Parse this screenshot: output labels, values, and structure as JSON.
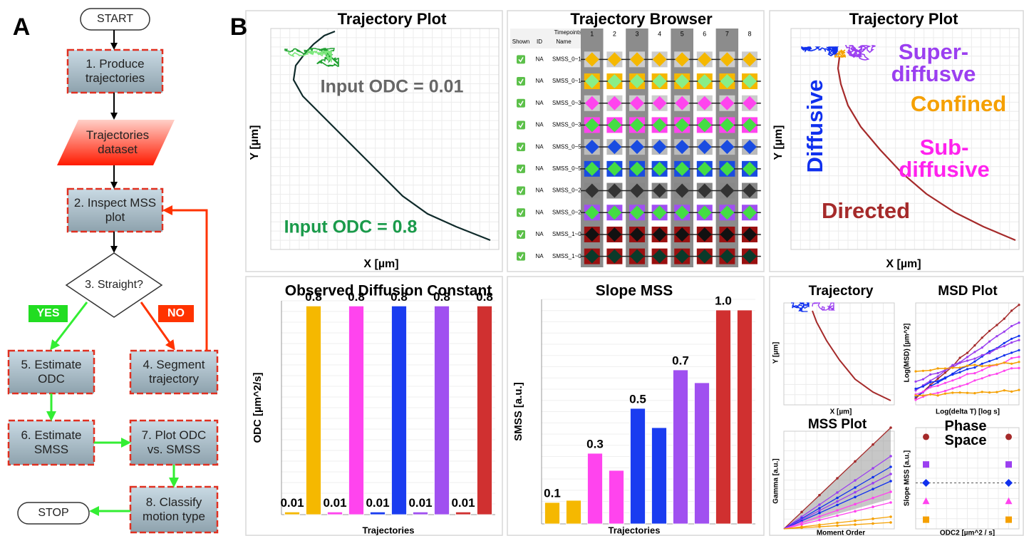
{
  "panel_labels": [
    "A",
    "B"
  ],
  "flowchart": {
    "nodes": [
      {
        "label": "START"
      },
      {
        "label": "1. Produce trajectories"
      },
      {
        "label": "Trajectories dataset"
      },
      {
        "label": "2. Inspect MSS plot"
      },
      {
        "label": "3. Straight?"
      },
      {
        "label": "4. Segment trajectory"
      },
      {
        "label": "5. Estimate ODC"
      },
      {
        "label": "6. Estimate SMSS"
      },
      {
        "label": "7. Plot ODC vs. SMSS"
      },
      {
        "label": "8. Classify motion type"
      },
      {
        "label": "STOP"
      }
    ],
    "edge_labels": [
      "YES",
      "NO"
    ]
  },
  "trajectory_plot_input": {
    "title": "Trajectory Plot",
    "annotations": [
      {
        "text": "Input ODC = 0.01",
        "color": "#666666"
      },
      {
        "text": "Input ODC = 0.8",
        "color": "#1a9a4a"
      }
    ],
    "x_label": "X [µm]",
    "y_label": "Y [µm]"
  },
  "trajectory_browser": {
    "title": "Trajectory Browser",
    "headers": [
      "Shown",
      "ID",
      "Timepoints",
      "Name"
    ],
    "columns": [
      "1",
      "2",
      "3",
      "4",
      "5",
      "6",
      "7",
      "8"
    ],
    "rows": [
      {
        "id": "NA",
        "name": "SMSS_0~1",
        "fill": "#cccccc",
        "marker": "#f5b800"
      },
      {
        "id": "NA",
        "name": "SMSS_0~1",
        "fill": "#f5b800",
        "marker": "#88ee88"
      },
      {
        "id": "NA",
        "name": "SMSS_0~3",
        "fill": "#cccccc",
        "marker": "#ff44ee"
      },
      {
        "id": "NA",
        "name": "SMSS_0~3",
        "fill": "#ff44ee",
        "marker": "#44dd44"
      },
      {
        "id": "NA",
        "name": "SMSS_0~5",
        "fill": "#bbbbbb",
        "marker": "#1a4ce0"
      },
      {
        "id": "NA",
        "name": "SMSS_0~5",
        "fill": "#1a4ce0",
        "marker": "#44dd44"
      },
      {
        "id": "NA",
        "name": "SMSS_0~2",
        "fill": "#888888",
        "marker": "#333333"
      },
      {
        "id": "NA",
        "name": "SMSS_0~2",
        "fill": "#a050f0",
        "marker": "#44dd44"
      },
      {
        "id": "NA",
        "name": "SMSS_1~0",
        "fill": "#9a1010",
        "marker": "#111111"
      },
      {
        "id": "NA",
        "name": "SMSS_1~0",
        "fill": "#9a1010",
        "marker": "#0a3a2a"
      }
    ]
  },
  "trajectory_plot_classified": {
    "title": "Trajectory Plot",
    "annotations": [
      {
        "text": "Super-diffusve",
        "color": "#9b3ff0"
      },
      {
        "text": "Confined",
        "color": "#f5a000"
      },
      {
        "text": "Sub-diffusive",
        "color": "#ff22ee"
      },
      {
        "text": "Diffusive",
        "color": "#1030ee"
      },
      {
        "text": "Directed",
        "color": "#a52a2a"
      }
    ],
    "x_label": "X [µm]",
    "y_label": "Y [µm]"
  },
  "chart_data": [
    {
      "type": "bar",
      "title": "Observed Diffusion Constant",
      "x_label": "Trajectories",
      "y_label": "ODC [µm^2/s]",
      "values": [
        0.01,
        0.8,
        0.01,
        0.8,
        0.01,
        0.8,
        0.01,
        0.8,
        0.01,
        0.8
      ],
      "colors": [
        "#f5b800",
        "#f5b800",
        "#ff44ee",
        "#ff44ee",
        "#1a3cf0",
        "#1a3cf0",
        "#a050f0",
        "#a050f0",
        "#d03030",
        "#d03030"
      ],
      "ylim": [
        0,
        0.82
      ]
    },
    {
      "type": "bar",
      "title": "Slope MSS",
      "x_label": "Trajectories",
      "y_label": "SMSS [a.u.]",
      "values": [
        0.1,
        0.11,
        0.33,
        0.25,
        0.54,
        0.45,
        0.72,
        0.66,
        1.0,
        1.0
      ],
      "value_labels": [
        "0.1",
        null,
        "0.3",
        null,
        "0.5",
        null,
        "0.7",
        null,
        "1.0",
        null
      ],
      "colors": [
        "#f5b800",
        "#f5b800",
        "#ff44ee",
        "#ff44ee",
        "#1a3cf0",
        "#1a3cf0",
        "#a050f0",
        "#a050f0",
        "#d03030",
        "#d03030"
      ],
      "ylim": [
        0,
        1.05
      ]
    },
    {
      "type": "scatter",
      "title": "Phase Space",
      "x_label": "ODC2 [µm^2 / s]",
      "y_label": "Slope MSS [a.u.]",
      "x": [
        0,
        0.8
      ],
      "xlim": [
        -0.1,
        0.9
      ],
      "ylim": [
        0,
        1.1
      ],
      "hline": 0.5,
      "series": [
        {
          "color": "#a52a2a",
          "marker": "circle",
          "values": [
            1.0,
            1.0
          ]
        },
        {
          "color": "#9b3ff0",
          "marker": "square",
          "values": [
            0.7,
            0.7
          ]
        },
        {
          "color": "#1030ee",
          "marker": "diamond",
          "values": [
            0.5,
            0.5
          ]
        },
        {
          "color": "#ff44ee",
          "marker": "triangle",
          "values": [
            0.3,
            0.3
          ]
        },
        {
          "color": "#f5a000",
          "marker": "square",
          "values": [
            0.1,
            0.1
          ]
        }
      ]
    }
  ],
  "mini_panels": {
    "trajectory": {
      "title": "Trajectory",
      "x_label": "X [µm]",
      "y_label": "Y [µm]"
    },
    "msd_plot": {
      "title": "MSD Plot",
      "x_label": "Log(delta T) [log s]",
      "y_label": "Log(MSD) [µm^2]"
    },
    "mss_plot": {
      "title": "MSS Plot",
      "x_label": "Moment Order",
      "y_label": "Gamma [a.u.]"
    }
  }
}
